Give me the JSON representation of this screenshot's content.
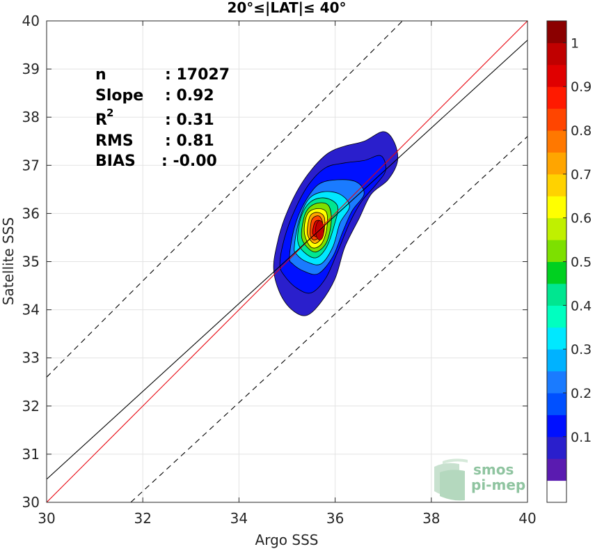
{
  "chart_data": {
    "type": "contour",
    "title": "20°≤|LAT|≤ 40°",
    "xlabel": "Argo SSS",
    "ylabel": "Satellite SSS",
    "xlim": [
      30,
      40
    ],
    "ylim": [
      30,
      40
    ],
    "xticks": [
      "30",
      "32",
      "34",
      "36",
      "38",
      "40"
    ],
    "yticks": [
      "30",
      "31",
      "32",
      "33",
      "34",
      "35",
      "36",
      "37",
      "38",
      "39",
      "40"
    ],
    "grid": true,
    "stats": {
      "n_label": "n",
      "n_value": ": 17027",
      "slope_label": "Slope",
      "slope_value": ": 0.92",
      "r2_label": "R",
      "r2_sup": "2",
      "r2_value": ": 0.31",
      "rms_label": "RMS",
      "rms_value": ": 0.81",
      "bias_label": "BIAS",
      "bias_value": ": -0.00"
    },
    "lines": [
      {
        "name": "identity",
        "color": "#e8000b",
        "style": "solid",
        "x": [
          30,
          40
        ],
        "y": [
          30,
          40
        ]
      },
      {
        "name": "fit",
        "color": "#000000",
        "style": "solid",
        "x": [
          30,
          40
        ],
        "y": [
          30.48,
          39.6
        ]
      },
      {
        "name": "upper bound",
        "color": "#000000",
        "style": "dashed",
        "x": [
          30,
          37.4
        ],
        "y": [
          32.6,
          40
        ]
      },
      {
        "name": "lower bound",
        "color": "#000000",
        "style": "dashed",
        "x": [
          31.75,
          40
        ],
        "y": [
          30,
          37.6
        ]
      }
    ],
    "density_peak": {
      "x": 35.68,
      "y": 35.65
    },
    "contours": [
      {
        "level": 0.05,
        "points": [
          [
            34.72,
            34.85
          ],
          [
            34.8,
            35.4
          ],
          [
            34.95,
            35.9
          ],
          [
            35.2,
            36.45
          ],
          [
            35.5,
            36.9
          ],
          [
            35.85,
            37.25
          ],
          [
            36.2,
            37.4
          ],
          [
            36.6,
            37.5
          ],
          [
            37.0,
            37.7
          ],
          [
            37.22,
            37.5
          ],
          [
            37.3,
            37.1
          ],
          [
            37.1,
            36.7
          ],
          [
            36.75,
            36.4
          ],
          [
            36.5,
            35.9
          ],
          [
            36.2,
            35.3
          ],
          [
            36.0,
            34.65
          ],
          [
            35.7,
            34.15
          ],
          [
            35.4,
            33.88
          ],
          [
            35.1,
            34.0
          ],
          [
            34.85,
            34.35
          ]
        ]
      },
      {
        "level": 0.1,
        "points": [
          [
            34.85,
            34.95
          ],
          [
            34.95,
            35.5
          ],
          [
            35.15,
            36.05
          ],
          [
            35.45,
            36.6
          ],
          [
            35.8,
            36.95
          ],
          [
            36.2,
            37.05
          ],
          [
            36.6,
            37.1
          ],
          [
            36.95,
            37.2
          ],
          [
            37.05,
            36.9
          ],
          [
            36.85,
            36.6
          ],
          [
            36.55,
            36.25
          ],
          [
            36.3,
            35.8
          ],
          [
            36.05,
            35.2
          ],
          [
            35.8,
            34.65
          ],
          [
            35.5,
            34.35
          ],
          [
            35.2,
            34.45
          ],
          [
            34.95,
            34.7
          ]
        ]
      },
      {
        "level": 0.2,
        "points": [
          [
            35.05,
            35.1
          ],
          [
            35.15,
            35.7
          ],
          [
            35.35,
            36.2
          ],
          [
            35.65,
            36.6
          ],
          [
            36.05,
            36.7
          ],
          [
            36.45,
            36.65
          ],
          [
            36.6,
            36.4
          ],
          [
            36.35,
            36.05
          ],
          [
            36.15,
            35.6
          ],
          [
            35.95,
            35.1
          ],
          [
            35.65,
            34.75
          ],
          [
            35.35,
            34.8
          ],
          [
            35.12,
            34.95
          ]
        ]
      },
      {
        "level": 0.3,
        "points": [
          [
            35.15,
            35.3
          ],
          [
            35.25,
            35.85
          ],
          [
            35.45,
            36.3
          ],
          [
            35.75,
            36.45
          ],
          [
            36.1,
            36.4
          ],
          [
            36.3,
            36.15
          ],
          [
            36.1,
            35.8
          ],
          [
            35.95,
            35.3
          ],
          [
            35.7,
            34.95
          ],
          [
            35.4,
            35.0
          ],
          [
            35.2,
            35.15
          ]
        ]
      },
      {
        "level": 0.4,
        "points": [
          [
            35.22,
            35.45
          ],
          [
            35.3,
            35.95
          ],
          [
            35.5,
            36.25
          ],
          [
            35.8,
            36.32
          ],
          [
            36.05,
            36.15
          ],
          [
            35.98,
            35.75
          ],
          [
            35.82,
            35.3
          ],
          [
            35.6,
            35.08
          ],
          [
            35.35,
            35.2
          ]
        ]
      },
      {
        "level": 0.5,
        "points": [
          [
            35.3,
            35.55
          ],
          [
            35.38,
            36.0
          ],
          [
            35.58,
            36.2
          ],
          [
            35.85,
            36.18
          ],
          [
            35.92,
            35.85
          ],
          [
            35.82,
            35.4
          ],
          [
            35.6,
            35.2
          ],
          [
            35.4,
            35.32
          ]
        ]
      },
      {
        "level": 0.6,
        "points": [
          [
            35.36,
            35.6
          ],
          [
            35.42,
            35.98
          ],
          [
            35.62,
            36.1
          ],
          [
            35.82,
            36.02
          ],
          [
            35.82,
            35.65
          ],
          [
            35.7,
            35.35
          ],
          [
            35.5,
            35.3
          ]
        ]
      },
      {
        "level": 0.7,
        "points": [
          [
            35.42,
            35.62
          ],
          [
            35.48,
            35.95
          ],
          [
            35.65,
            36.02
          ],
          [
            35.78,
            35.9
          ],
          [
            35.75,
            35.55
          ],
          [
            35.6,
            35.38
          ],
          [
            35.48,
            35.45
          ]
        ]
      },
      {
        "level": 0.8,
        "points": [
          [
            35.48,
            35.62
          ],
          [
            35.52,
            35.88
          ],
          [
            35.66,
            35.95
          ],
          [
            35.74,
            35.8
          ],
          [
            35.7,
            35.55
          ],
          [
            35.58,
            35.45
          ],
          [
            35.5,
            35.5
          ]
        ]
      },
      {
        "level": 0.9,
        "points": [
          [
            35.53,
            35.62
          ],
          [
            35.58,
            35.82
          ],
          [
            35.68,
            35.85
          ],
          [
            35.7,
            35.68
          ],
          [
            35.64,
            35.52
          ],
          [
            35.56,
            35.54
          ]
        ]
      }
    ],
    "colorbar": {
      "ticks": [
        "0.1",
        "0.2",
        "0.3",
        "0.4",
        "0.5",
        "0.6",
        "0.7",
        "0.8",
        "0.9",
        "1"
      ],
      "colors": [
        "#ffffff",
        "#5a1bb0",
        "#2a1fcc",
        "#0010ff",
        "#0050ff",
        "#1a7bff",
        "#00b2ff",
        "#00e8ff",
        "#00ffc0",
        "#00e690",
        "#00d020",
        "#7de000",
        "#c0f000",
        "#ffff00",
        "#ffd200",
        "#ffa500",
        "#ff7800",
        "#ff4500",
        "#ff1a00",
        "#e00000",
        "#c00000",
        "#8b0000"
      ]
    }
  },
  "logo": {
    "line1": "smos",
    "line2": "pi-mep"
  }
}
